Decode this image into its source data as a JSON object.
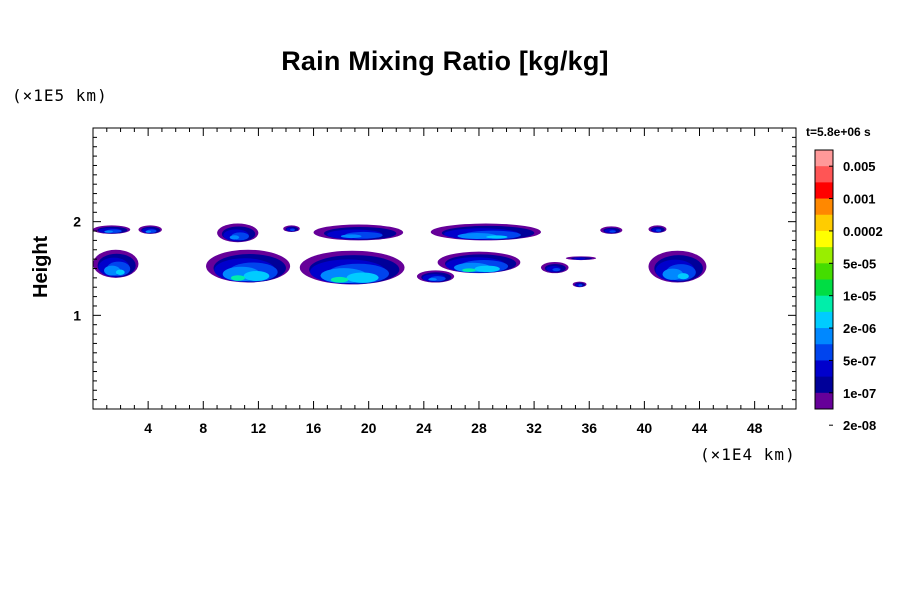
{
  "chart_data": {
    "type": "heatmap",
    "title": "Rain Mixing Ratio [kg/kg]",
    "xlabel": "",
    "ylabel": "Height",
    "x_scale_label": "(×1E4 km)",
    "y_scale_label": "(×1E5 km)",
    "time_label": "t=5.8e+06 s",
    "xlim": [
      0,
      51
    ],
    "ylim": [
      0,
      3
    ],
    "x_ticks": [
      4,
      8,
      12,
      16,
      20,
      24,
      28,
      32,
      36,
      40,
      44,
      48
    ],
    "y_ticks": [
      1,
      2
    ],
    "colorbar": {
      "labels": [
        "0.005",
        "0.001",
        "0.0002",
        "5e-05",
        "1e-05",
        "2e-06",
        "5e-07",
        "1e-07",
        "2e-08"
      ],
      "colors_top_to_bottom": [
        "#ff9999",
        "#ff5555",
        "#ff0000",
        "#ff8800",
        "#ffcc00",
        "#ffff00",
        "#99ee00",
        "#44dd00",
        "#00dd44",
        "#00eeaa",
        "#00ccff",
        "#0088ff",
        "#0044ee",
        "#0000cc",
        "#000099",
        "#660099"
      ]
    },
    "cells": [
      {
        "x": [
          0.0,
          2.7
        ],
        "y": [
          1.87,
          1.96
        ],
        "level": 4
      },
      {
        "x": [
          3.3,
          5.0
        ],
        "y": [
          1.87,
          1.96
        ],
        "level": 4
      },
      {
        "x": [
          0.0,
          3.3
        ],
        "y": [
          1.4,
          1.7
        ],
        "level": 5
      },
      {
        "x": [
          9.0,
          12.0
        ],
        "y": [
          1.78,
          1.98
        ],
        "level": 4
      },
      {
        "x": [
          8.2,
          14.3
        ],
        "y": [
          1.35,
          1.7
        ],
        "level": 6
      },
      {
        "x": [
          13.8,
          15.0
        ],
        "y": [
          1.89,
          1.96
        ],
        "level": 3
      },
      {
        "x": [
          16.0,
          22.5
        ],
        "y": [
          1.8,
          1.97
        ],
        "level": 4
      },
      {
        "x": [
          15.0,
          22.6
        ],
        "y": [
          1.33,
          1.69
        ],
        "level": 6
      },
      {
        "x": [
          23.5,
          26.2
        ],
        "y": [
          1.35,
          1.48
        ],
        "level": 4
      },
      {
        "x": [
          24.5,
          32.5
        ],
        "y": [
          1.8,
          1.98
        ],
        "level": 5
      },
      {
        "x": [
          25.0,
          31.0
        ],
        "y": [
          1.45,
          1.68
        ],
        "level": 6
      },
      {
        "x": [
          32.5,
          34.5
        ],
        "y": [
          1.45,
          1.57
        ],
        "level": 3
      },
      {
        "x": [
          34.8,
          35.8
        ],
        "y": [
          1.3,
          1.36
        ],
        "level": 3
      },
      {
        "x": [
          34.3,
          36.5
        ],
        "y": [
          1.59,
          1.63
        ],
        "level": 2
      },
      {
        "x": [
          36.8,
          38.4
        ],
        "y": [
          1.87,
          1.95
        ],
        "level": 3
      },
      {
        "x": [
          40.3,
          44.5
        ],
        "y": [
          1.35,
          1.69
        ],
        "level": 5
      },
      {
        "x": [
          40.3,
          41.6
        ],
        "y": [
          1.88,
          1.96
        ],
        "level": 3
      }
    ]
  }
}
